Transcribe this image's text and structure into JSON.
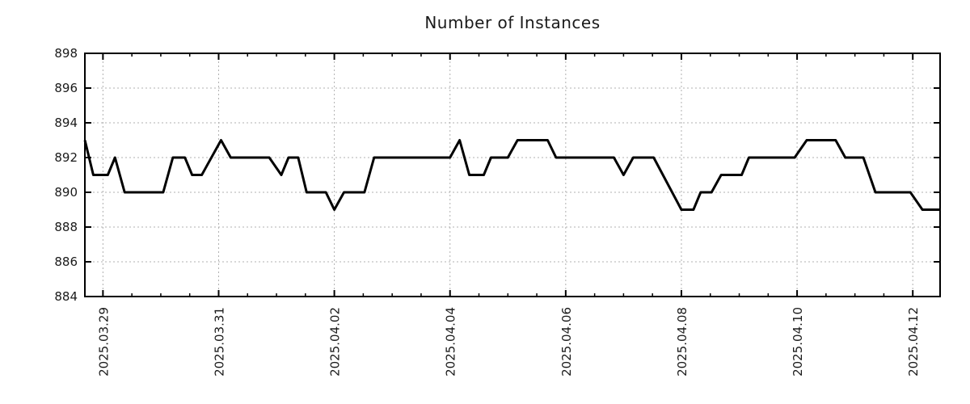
{
  "title": "Number of Instances",
  "chart_data": {
    "type": "line",
    "title": "Number of Instances",
    "xlabel": "",
    "ylabel": "",
    "grid": true,
    "legend": "none",
    "ylim": [
      884,
      898
    ],
    "yticks": [
      884,
      886,
      888,
      890,
      892,
      894,
      896,
      898
    ],
    "xlim": [
      "2025-03-28T16:30",
      "2025-04-12T11:20"
    ],
    "xticks": [
      {
        "label": "2025.03.29",
        "t": "2025-03-29T00:00"
      },
      {
        "label": "2025.03.31",
        "t": "2025-03-31T00:00"
      },
      {
        "label": "2025.04.02",
        "t": "2025-04-02T00:00"
      },
      {
        "label": "2025.04.04",
        "t": "2025-04-04T00:00"
      },
      {
        "label": "2025.04.06",
        "t": "2025-04-06T00:00"
      },
      {
        "label": "2025.04.08",
        "t": "2025-04-08T00:00"
      },
      {
        "label": "2025.04.10",
        "t": "2025-04-10T00:00"
      },
      {
        "label": "2025.04.12",
        "t": "2025-04-12T00:00"
      }
    ],
    "minor_xtick_hours": 12,
    "line_color": "#000000",
    "border_color": "#000000",
    "grid_color": "#b0b0b0",
    "text_color": "#1a1a1a",
    "series": [
      {
        "name": "instances",
        "points": [
          [
            "2025-03-28T16:30",
            893
          ],
          [
            "2025-03-28T20:00",
            891
          ],
          [
            "2025-03-29T02:00",
            891
          ],
          [
            "2025-03-29T05:00",
            892
          ],
          [
            "2025-03-29T09:00",
            890
          ],
          [
            "2025-03-30T01:00",
            890
          ],
          [
            "2025-03-30T05:00",
            892
          ],
          [
            "2025-03-30T10:00",
            892
          ],
          [
            "2025-03-30T13:00",
            891
          ],
          [
            "2025-03-30T17:00",
            891
          ],
          [
            "2025-03-31T01:00",
            893
          ],
          [
            "2025-03-31T05:00",
            892
          ],
          [
            "2025-03-31T21:00",
            892
          ],
          [
            "2025-04-01T02:00",
            891
          ],
          [
            "2025-04-01T05:00",
            892
          ],
          [
            "2025-04-01T09:00",
            892
          ],
          [
            "2025-04-01T12:30",
            890
          ],
          [
            "2025-04-01T20:30",
            890
          ],
          [
            "2025-04-02T00:00",
            889
          ],
          [
            "2025-04-02T04:00",
            890
          ],
          [
            "2025-04-02T12:30",
            890
          ],
          [
            "2025-04-02T16:30",
            892
          ],
          [
            "2025-04-04T00:00",
            892
          ],
          [
            "2025-04-04T04:00",
            893
          ],
          [
            "2025-04-04T08:00",
            891
          ],
          [
            "2025-04-04T14:00",
            891
          ],
          [
            "2025-04-04T17:00",
            892
          ],
          [
            "2025-04-05T00:00",
            892
          ],
          [
            "2025-04-05T04:00",
            893
          ],
          [
            "2025-04-05T16:30",
            893
          ],
          [
            "2025-04-05T20:00",
            892
          ],
          [
            "2025-04-06T20:00",
            892
          ],
          [
            "2025-04-07T00:00",
            891
          ],
          [
            "2025-04-07T04:00",
            892
          ],
          [
            "2025-04-07T12:30",
            892
          ],
          [
            "2025-04-08T00:00",
            889
          ],
          [
            "2025-04-08T05:00",
            889
          ],
          [
            "2025-04-08T08:00",
            890
          ],
          [
            "2025-04-08T12:30",
            890
          ],
          [
            "2025-04-08T16:30",
            891
          ],
          [
            "2025-04-09T01:00",
            891
          ],
          [
            "2025-04-09T04:00",
            892
          ],
          [
            "2025-04-09T23:00",
            892
          ],
          [
            "2025-04-10T04:00",
            893
          ],
          [
            "2025-04-10T16:00",
            893
          ],
          [
            "2025-04-10T20:00",
            892
          ],
          [
            "2025-04-11T03:30",
            892
          ],
          [
            "2025-04-11T08:30",
            890
          ],
          [
            "2025-04-11T23:00",
            890
          ],
          [
            "2025-04-12T04:00",
            889
          ],
          [
            "2025-04-12T11:20",
            889
          ]
        ]
      }
    ]
  }
}
